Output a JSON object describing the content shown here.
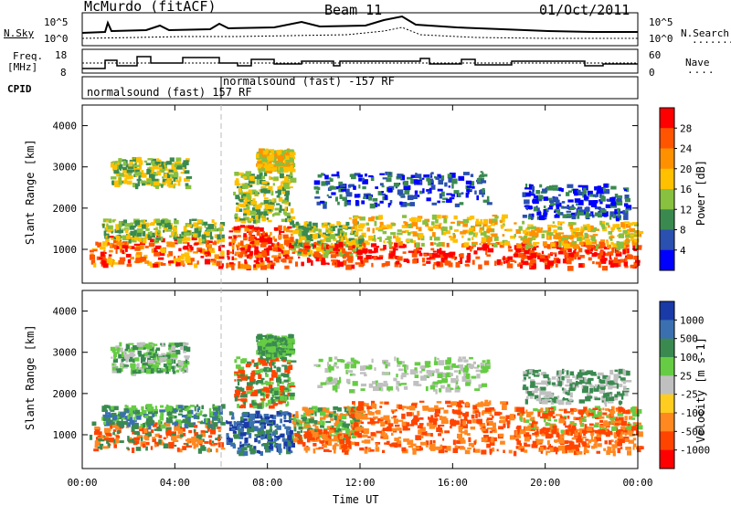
{
  "header": {
    "station": "McMurdo (fitACF)",
    "beam": "Beam 11",
    "date": "01/Oct/2011"
  },
  "noise_panel": {
    "left_label": "N.Sky",
    "left_ticks": [
      "10^5",
      "10^0"
    ],
    "right_label": "N.Search",
    "right_ticks": [
      "10^5",
      "10^0"
    ]
  },
  "freq_panel": {
    "left_label_1": "Freq.",
    "left_label_2": "[MHz]",
    "left_ticks": [
      "18",
      "8"
    ],
    "right_label": "Nave",
    "right_ticks": [
      "60",
      "0"
    ]
  },
  "cpid": {
    "label": "CPID",
    "modes": [
      "normalsound (fast) 157 RF",
      "normalsound (fast) -157 RF"
    ]
  },
  "chart_data": [
    {
      "type": "heatmap",
      "quantity": "Power",
      "ylabel": "Slant Range [km]",
      "xlabel": "",
      "yticks": [
        "1000",
        "2000",
        "3000",
        "4000"
      ],
      "ylim": [
        180,
        4500
      ],
      "colorbar_label": "Power [dB]",
      "colorbar_ticks": [
        "28",
        "24",
        "20",
        "16",
        "12",
        "8",
        "4"
      ],
      "colorbar_colors": [
        "#ff0000",
        "#ff5500",
        "#ff9000",
        "#ffc000",
        "#88c040",
        "#3a8a50",
        "#2a50b0",
        "#0000ff"
      ]
    },
    {
      "type": "heatmap",
      "quantity": "Velocity",
      "ylabel": "Slant Range [km]",
      "xlabel": "Time UT",
      "yticks": [
        "1000",
        "2000",
        "3000",
        "4000"
      ],
      "ylim": [
        180,
        4500
      ],
      "xticks": [
        "00:00",
        "04:00",
        "08:00",
        "12:00",
        "16:00",
        "20:00",
        "00:00"
      ],
      "colorbar_label": "Velocity [m s-1]",
      "colorbar_ticks": [
        "1000",
        "500",
        "100",
        "25",
        "-25",
        "-100",
        "-500",
        "-1000"
      ],
      "colorbar_colors": [
        "#1a3aa8",
        "#3a70b0",
        "#3a8a50",
        "#66cc44",
        "#c0c0c0",
        "#ffcc20",
        "#ff8820",
        "#ff4400",
        "#ff0000"
      ]
    }
  ]
}
